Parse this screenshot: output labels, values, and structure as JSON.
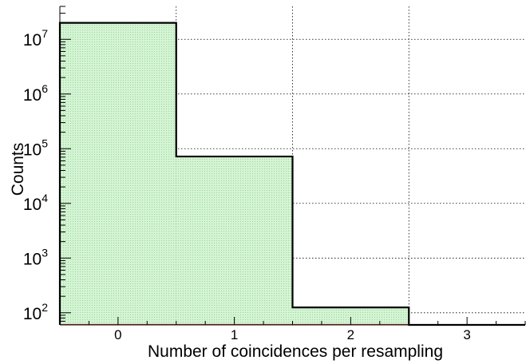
{
  "chart_data": {
    "type": "bar",
    "title": "",
    "xlabel": "Number of coincidences per resampling",
    "ylabel": "Counts",
    "categories": [
      "0",
      "1",
      "2",
      "3"
    ],
    "values": [
      20000000,
      72000,
      125,
      0
    ],
    "xlim": [
      -0.5,
      3.5
    ],
    "ylim": [
      60,
      40000000
    ],
    "y_scale": "log",
    "y_ticks": [
      {
        "base": "10",
        "exp": "2",
        "value": 100
      },
      {
        "base": "10",
        "exp": "3",
        "value": 1000
      },
      {
        "base": "10",
        "exp": "4",
        "value": 10000
      },
      {
        "base": "10",
        "exp": "5",
        "value": 100000
      },
      {
        "base": "10",
        "exp": "6",
        "value": 1000000
      },
      {
        "base": "10",
        "exp": "7",
        "value": 10000000
      }
    ],
    "x_ticks": [
      0,
      1,
      2,
      3
    ],
    "grid": true,
    "grid_style": "dotted",
    "fill_color": "#c8f0c8",
    "outline_color": "#000000",
    "baseline_color": "#c0392b"
  }
}
